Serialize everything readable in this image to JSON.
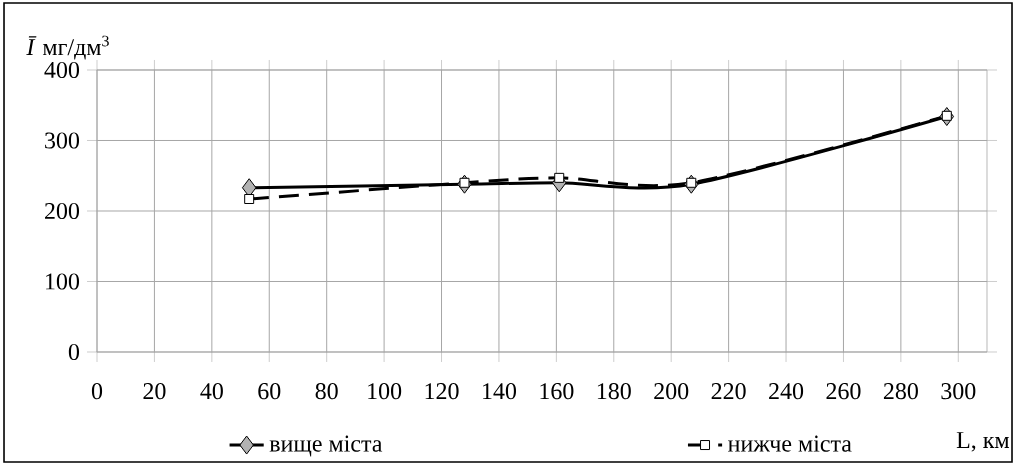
{
  "chart_data": {
    "type": "line",
    "xlabel": "L, км",
    "ylabel": "*Ī* мг/дм$^{3}$",
    "xlim": [
      0,
      310
    ],
    "ylim": [
      0,
      400
    ],
    "xticks": [
      0,
      20,
      40,
      60,
      80,
      100,
      120,
      140,
      160,
      180,
      200,
      220,
      240,
      260,
      280,
      300
    ],
    "yticks": [
      0,
      100,
      200,
      300,
      400
    ],
    "grid": true,
    "legend": "bottom",
    "series": [
      {
        "name": "вище міста",
        "color": "#000000",
        "marker": "diamond",
        "line_style": "solid",
        "x": [
          53,
          128,
          161,
          207,
          296
        ],
        "values": [
          233,
          238,
          240,
          238,
          334
        ]
      },
      {
        "name": "нижче міста",
        "color": "#000000",
        "marker": "square",
        "line_style": "dashed",
        "x": [
          53,
          128,
          161,
          207,
          296
        ],
        "values": [
          217,
          240,
          247,
          240,
          335
        ]
      }
    ]
  }
}
